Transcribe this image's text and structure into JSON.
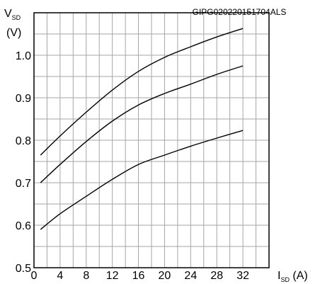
{
  "chart_data": {
    "type": "line",
    "code": "GIPG020220151704ALS",
    "ylabel_main": "V",
    "ylabel_sub": "SD",
    "ylabel_unit": "(V)",
    "xlabel_main": "I",
    "xlabel_sub": "SD",
    "xlabel_unit": " (A)",
    "xlim": [
      0,
      36
    ],
    "ylim": [
      0.5,
      1.1
    ],
    "x_ticks": [
      0,
      4,
      8,
      12,
      16,
      20,
      24,
      28,
      32
    ],
    "y_ticks": [
      0.5,
      0.6,
      0.7,
      0.8,
      0.9,
      1.0
    ],
    "y_tick_labels": [
      "0.5",
      "0.6",
      "0.7",
      "0.8",
      "0.9",
      "1.0"
    ],
    "x_grid_step": 2,
    "y_grid_step": 0.05,
    "grid": true,
    "series": [
      {
        "x": [
          1,
          4,
          8,
          12,
          16,
          20,
          24,
          28,
          32
        ],
        "values": [
          0.765,
          0.81,
          0.866,
          0.918,
          0.962,
          0.995,
          1.02,
          1.043,
          1.063
        ]
      },
      {
        "x": [
          1,
          4,
          8,
          12,
          16,
          20,
          24,
          28,
          32
        ],
        "values": [
          0.7,
          0.743,
          0.797,
          0.845,
          0.883,
          0.91,
          0.932,
          0.955,
          0.975
        ]
      },
      {
        "x": [
          1,
          4,
          8,
          12,
          16,
          20,
          24,
          28,
          32
        ],
        "values": [
          0.59,
          0.627,
          0.668,
          0.708,
          0.743,
          0.765,
          0.786,
          0.805,
          0.823
        ]
      }
    ]
  }
}
